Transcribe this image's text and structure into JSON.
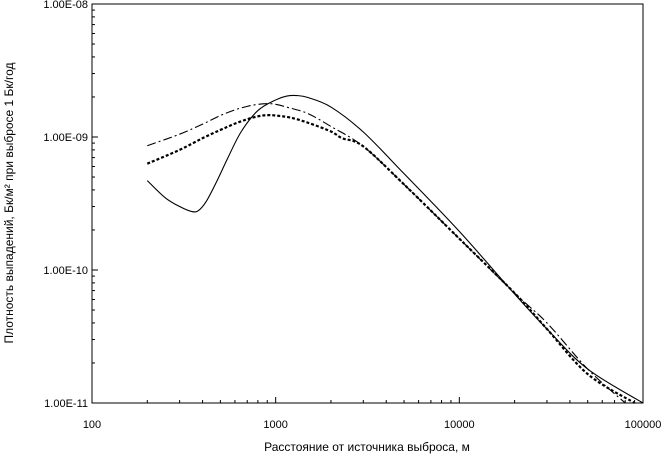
{
  "chart_data": {
    "type": "line",
    "title": "",
    "xlabel": "Расстояние от источника выброса, м",
    "ylabel": "Плотность выпадений, Бк/м² при выбросе 1 Бк/год",
    "xscale": "log",
    "yscale": "log",
    "xlim": [
      100,
      100000
    ],
    "ylim": [
      1e-11,
      1e-08
    ],
    "grid": false,
    "legend": "none",
    "x_ticks": [
      100,
      1000,
      10000,
      100000
    ],
    "x_tick_labels": [
      "100",
      "1000",
      "10000",
      "100000"
    ],
    "y_ticks": [
      1e-11,
      1e-10,
      1e-09,
      1e-08
    ],
    "y_tick_labels": [
      "1.00E-11",
      "1.00E-10",
      "1.00E-09",
      "1.00E-08"
    ],
    "series": [
      {
        "line_style": "solid",
        "color": "#000000",
        "x": [
          200,
          250,
          300,
          350,
          380,
          420,
          480,
          550,
          650,
          800,
          1000,
          1150,
          1300,
          1500,
          2000,
          3000,
          5000,
          10000,
          20000,
          30000,
          50000,
          100000
        ],
        "y": [
          4.7e-10,
          3.5e-10,
          3e-10,
          2.75e-10,
          2.8e-10,
          3.3e-10,
          4.7e-10,
          7e-10,
          1.1e-09,
          1.58e-09,
          1.9e-09,
          2.03e-09,
          2.05e-09,
          1.98e-09,
          1.68e-09,
          1.09e-09,
          5.3e-10,
          1.95e-10,
          6.6e-11,
          3.6e-11,
          1.8e-11,
          1e-11
        ]
      },
      {
        "line_style": "dash-dot",
        "color": "#000000",
        "x": [
          200,
          300,
          400,
          500,
          600,
          700,
          800,
          900,
          1000,
          1200,
          1500,
          2000,
          3000,
          5000,
          10000,
          20000,
          30000,
          50000,
          80000
        ],
        "y": [
          8.6e-10,
          1.05e-09,
          1.25e-09,
          1.45e-09,
          1.6e-09,
          1.7e-09,
          1.76e-09,
          1.78e-09,
          1.76e-09,
          1.65e-09,
          1.5e-09,
          1.2e-09,
          8.5e-10,
          4.4e-10,
          1.72e-10,
          6.7e-11,
          4e-11,
          1.8e-11,
          1e-11
        ]
      },
      {
        "line_style": "dotted-dash",
        "color": "#000000",
        "x": [
          200,
          300,
          400,
          500,
          600,
          700,
          800,
          900,
          1000,
          1200,
          1500,
          2000,
          2300,
          3000,
          5000,
          10000,
          20000,
          30000,
          50000,
          90000
        ],
        "y": [
          6.3e-10,
          8e-10,
          9.8e-10,
          1.13e-09,
          1.26e-09,
          1.36e-09,
          1.43e-09,
          1.46e-09,
          1.45e-09,
          1.4e-09,
          1.28e-09,
          1.1e-09,
          9.8e-10,
          8.5e-10,
          4.4e-10,
          1.72e-10,
          6.7e-11,
          3.6e-11,
          1.65e-11,
          1e-11
        ]
      }
    ]
  }
}
